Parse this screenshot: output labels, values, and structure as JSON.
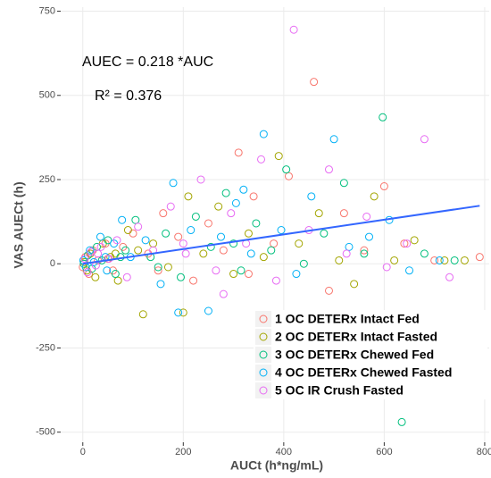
{
  "chart_data": {
    "type": "scatter",
    "xlabel": "AUCt (h*ng/mL)",
    "ylabel": "VAS AUECt (h)",
    "annotations": [
      "AUEC = 0.218 *AUC",
      "R² = 0.376"
    ],
    "xlim": [
      -44,
      809
    ],
    "ylim": [
      -530,
      762
    ],
    "xticks": [
      0,
      200,
      400,
      600,
      800
    ],
    "yticks": [
      -500,
      -250,
      0,
      250,
      500,
      750
    ],
    "grid": true,
    "legend": "lower right",
    "fit": {
      "color": "#3366ff",
      "x": [
        0,
        790
      ],
      "y": [
        0,
        172.22
      ]
    },
    "series": [
      {
        "name": "1 OC DETERx Intact Fed",
        "color": "#F8766D",
        "x": [
          0,
          5,
          12,
          20,
          30,
          45,
          60,
          80,
          100,
          130,
          160,
          190,
          220,
          250,
          280,
          310,
          340,
          380,
          410,
          460,
          490,
          520,
          560,
          600,
          640,
          700,
          790,
          330,
          150,
          50
        ],
        "y": [
          -10,
          20,
          -30,
          40,
          10,
          60,
          -20,
          50,
          90,
          30,
          150,
          80,
          -50,
          120,
          40,
          330,
          200,
          60,
          260,
          540,
          -80,
          150,
          40,
          230,
          60,
          10,
          20,
          -30,
          -20,
          15
        ]
      },
      {
        "name": "2 OC DETERx Intact Fasted",
        "color": "#A3A500",
        "x": [
          3,
          8,
          15,
          25,
          40,
          55,
          70,
          90,
          120,
          140,
          170,
          210,
          240,
          270,
          300,
          330,
          360,
          390,
          430,
          470,
          510,
          540,
          580,
          620,
          660,
          720,
          760,
          110,
          200,
          65
        ],
        "y": [
          5,
          -20,
          30,
          -40,
          60,
          20,
          -50,
          100,
          -150,
          60,
          -10,
          200,
          30,
          170,
          -30,
          90,
          20,
          320,
          60,
          150,
          10,
          -60,
          200,
          10,
          70,
          10,
          10,
          40,
          -145,
          30
        ]
      },
      {
        "name": "3 OC DETERx Chewed Fed",
        "color": "#00BF7D",
        "x": [
          2,
          10,
          18,
          28,
          38,
          50,
          65,
          85,
          105,
          135,
          165,
          195,
          225,
          255,
          285,
          315,
          345,
          375,
          405,
          440,
          480,
          520,
          560,
          597,
          635,
          680,
          740,
          300,
          150,
          75
        ],
        "y": [
          0,
          25,
          -15,
          50,
          10,
          70,
          -30,
          40,
          130,
          20,
          90,
          -40,
          140,
          50,
          210,
          -20,
          120,
          40,
          280,
          0,
          90,
          240,
          30,
          435,
          -470,
          30,
          10,
          60,
          -10,
          20
        ]
      },
      {
        "name": "4 OC DETERx Chewed Fasted",
        "color": "#00B0F6",
        "x": [
          1,
          6,
          14,
          22,
          35,
          48,
          62,
          78,
          95,
          125,
          155,
          190,
          215,
          250,
          275,
          305,
          335,
          360,
          395,
          425,
          455,
          500,
          530,
          570,
          610,
          650,
          710,
          180,
          320,
          45
        ],
        "y": [
          10,
          -10,
          40,
          5,
          80,
          -20,
          60,
          130,
          20,
          70,
          -60,
          -145,
          100,
          -140,
          80,
          180,
          30,
          385,
          100,
          -30,
          200,
          370,
          50,
          80,
          130,
          -20,
          10,
          240,
          220,
          20
        ]
      },
      {
        "name": "5 OC IR Crush Fasted",
        "color": "#E76BF3",
        "x": [
          4,
          9,
          16,
          26,
          36,
          52,
          68,
          88,
          110,
          140,
          175,
          205,
          235,
          265,
          295,
          325,
          355,
          385,
          420,
          450,
          490,
          525,
          565,
          605,
          645,
          680,
          730,
          280,
          200,
          30
        ],
        "y": [
          15,
          -25,
          35,
          -5,
          50,
          15,
          70,
          -40,
          110,
          40,
          170,
          30,
          250,
          -20,
          150,
          60,
          310,
          -50,
          695,
          100,
          280,
          30,
          140,
          -10,
          60,
          370,
          -40,
          -90,
          60,
          30
        ]
      }
    ]
  }
}
